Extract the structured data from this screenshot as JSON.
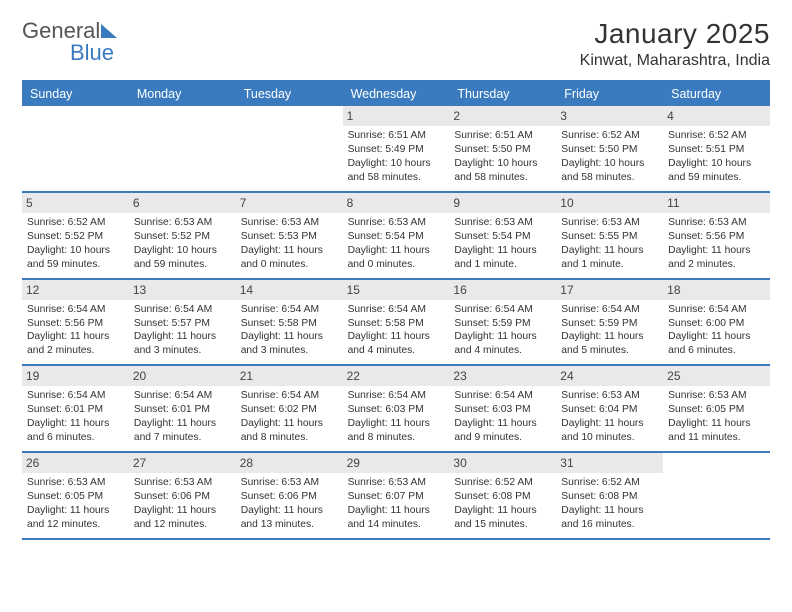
{
  "colors": {
    "accent": "#3a7bbf",
    "daynum_bg": "#e9e9e9",
    "text": "#333333",
    "bg": "#ffffff"
  },
  "typography": {
    "base_family": "Arial",
    "title_pt": 28,
    "location_pt": 16,
    "dayhead_pt": 12.5,
    "cell_pt": 10.3
  },
  "logo": {
    "text1": "General",
    "text2": "Blue"
  },
  "title": "January 2025",
  "location": "Kinwat, Maharashtra, India",
  "day_names": [
    "Sunday",
    "Monday",
    "Tuesday",
    "Wednesday",
    "Thursday",
    "Friday",
    "Saturday"
  ],
  "weeks": [
    [
      {
        "empty": true
      },
      {
        "empty": true
      },
      {
        "empty": true
      },
      {
        "day": "1",
        "sunrise": "Sunrise: 6:51 AM",
        "sunset": "Sunset: 5:49 PM",
        "dl1": "Daylight: 10 hours",
        "dl2": "and 58 minutes."
      },
      {
        "day": "2",
        "sunrise": "Sunrise: 6:51 AM",
        "sunset": "Sunset: 5:50 PM",
        "dl1": "Daylight: 10 hours",
        "dl2": "and 58 minutes."
      },
      {
        "day": "3",
        "sunrise": "Sunrise: 6:52 AM",
        "sunset": "Sunset: 5:50 PM",
        "dl1": "Daylight: 10 hours",
        "dl2": "and 58 minutes."
      },
      {
        "day": "4",
        "sunrise": "Sunrise: 6:52 AM",
        "sunset": "Sunset: 5:51 PM",
        "dl1": "Daylight: 10 hours",
        "dl2": "and 59 minutes."
      }
    ],
    [
      {
        "day": "5",
        "sunrise": "Sunrise: 6:52 AM",
        "sunset": "Sunset: 5:52 PM",
        "dl1": "Daylight: 10 hours",
        "dl2": "and 59 minutes."
      },
      {
        "day": "6",
        "sunrise": "Sunrise: 6:53 AM",
        "sunset": "Sunset: 5:52 PM",
        "dl1": "Daylight: 10 hours",
        "dl2": "and 59 minutes."
      },
      {
        "day": "7",
        "sunrise": "Sunrise: 6:53 AM",
        "sunset": "Sunset: 5:53 PM",
        "dl1": "Daylight: 11 hours",
        "dl2": "and 0 minutes."
      },
      {
        "day": "8",
        "sunrise": "Sunrise: 6:53 AM",
        "sunset": "Sunset: 5:54 PM",
        "dl1": "Daylight: 11 hours",
        "dl2": "and 0 minutes."
      },
      {
        "day": "9",
        "sunrise": "Sunrise: 6:53 AM",
        "sunset": "Sunset: 5:54 PM",
        "dl1": "Daylight: 11 hours",
        "dl2": "and 1 minute."
      },
      {
        "day": "10",
        "sunrise": "Sunrise: 6:53 AM",
        "sunset": "Sunset: 5:55 PM",
        "dl1": "Daylight: 11 hours",
        "dl2": "and 1 minute."
      },
      {
        "day": "11",
        "sunrise": "Sunrise: 6:53 AM",
        "sunset": "Sunset: 5:56 PM",
        "dl1": "Daylight: 11 hours",
        "dl2": "and 2 minutes."
      }
    ],
    [
      {
        "day": "12",
        "sunrise": "Sunrise: 6:54 AM",
        "sunset": "Sunset: 5:56 PM",
        "dl1": "Daylight: 11 hours",
        "dl2": "and 2 minutes."
      },
      {
        "day": "13",
        "sunrise": "Sunrise: 6:54 AM",
        "sunset": "Sunset: 5:57 PM",
        "dl1": "Daylight: 11 hours",
        "dl2": "and 3 minutes."
      },
      {
        "day": "14",
        "sunrise": "Sunrise: 6:54 AM",
        "sunset": "Sunset: 5:58 PM",
        "dl1": "Daylight: 11 hours",
        "dl2": "and 3 minutes."
      },
      {
        "day": "15",
        "sunrise": "Sunrise: 6:54 AM",
        "sunset": "Sunset: 5:58 PM",
        "dl1": "Daylight: 11 hours",
        "dl2": "and 4 minutes."
      },
      {
        "day": "16",
        "sunrise": "Sunrise: 6:54 AM",
        "sunset": "Sunset: 5:59 PM",
        "dl1": "Daylight: 11 hours",
        "dl2": "and 4 minutes."
      },
      {
        "day": "17",
        "sunrise": "Sunrise: 6:54 AM",
        "sunset": "Sunset: 5:59 PM",
        "dl1": "Daylight: 11 hours",
        "dl2": "and 5 minutes."
      },
      {
        "day": "18",
        "sunrise": "Sunrise: 6:54 AM",
        "sunset": "Sunset: 6:00 PM",
        "dl1": "Daylight: 11 hours",
        "dl2": "and 6 minutes."
      }
    ],
    [
      {
        "day": "19",
        "sunrise": "Sunrise: 6:54 AM",
        "sunset": "Sunset: 6:01 PM",
        "dl1": "Daylight: 11 hours",
        "dl2": "and 6 minutes."
      },
      {
        "day": "20",
        "sunrise": "Sunrise: 6:54 AM",
        "sunset": "Sunset: 6:01 PM",
        "dl1": "Daylight: 11 hours",
        "dl2": "and 7 minutes."
      },
      {
        "day": "21",
        "sunrise": "Sunrise: 6:54 AM",
        "sunset": "Sunset: 6:02 PM",
        "dl1": "Daylight: 11 hours",
        "dl2": "and 8 minutes."
      },
      {
        "day": "22",
        "sunrise": "Sunrise: 6:54 AM",
        "sunset": "Sunset: 6:03 PM",
        "dl1": "Daylight: 11 hours",
        "dl2": "and 8 minutes."
      },
      {
        "day": "23",
        "sunrise": "Sunrise: 6:54 AM",
        "sunset": "Sunset: 6:03 PM",
        "dl1": "Daylight: 11 hours",
        "dl2": "and 9 minutes."
      },
      {
        "day": "24",
        "sunrise": "Sunrise: 6:53 AM",
        "sunset": "Sunset: 6:04 PM",
        "dl1": "Daylight: 11 hours",
        "dl2": "and 10 minutes."
      },
      {
        "day": "25",
        "sunrise": "Sunrise: 6:53 AM",
        "sunset": "Sunset: 6:05 PM",
        "dl1": "Daylight: 11 hours",
        "dl2": "and 11 minutes."
      }
    ],
    [
      {
        "day": "26",
        "sunrise": "Sunrise: 6:53 AM",
        "sunset": "Sunset: 6:05 PM",
        "dl1": "Daylight: 11 hours",
        "dl2": "and 12 minutes."
      },
      {
        "day": "27",
        "sunrise": "Sunrise: 6:53 AM",
        "sunset": "Sunset: 6:06 PM",
        "dl1": "Daylight: 11 hours",
        "dl2": "and 12 minutes."
      },
      {
        "day": "28",
        "sunrise": "Sunrise: 6:53 AM",
        "sunset": "Sunset: 6:06 PM",
        "dl1": "Daylight: 11 hours",
        "dl2": "and 13 minutes."
      },
      {
        "day": "29",
        "sunrise": "Sunrise: 6:53 AM",
        "sunset": "Sunset: 6:07 PM",
        "dl1": "Daylight: 11 hours",
        "dl2": "and 14 minutes."
      },
      {
        "day": "30",
        "sunrise": "Sunrise: 6:52 AM",
        "sunset": "Sunset: 6:08 PM",
        "dl1": "Daylight: 11 hours",
        "dl2": "and 15 minutes."
      },
      {
        "day": "31",
        "sunrise": "Sunrise: 6:52 AM",
        "sunset": "Sunset: 6:08 PM",
        "dl1": "Daylight: 11 hours",
        "dl2": "and 16 minutes."
      },
      {
        "empty": true
      }
    ]
  ]
}
